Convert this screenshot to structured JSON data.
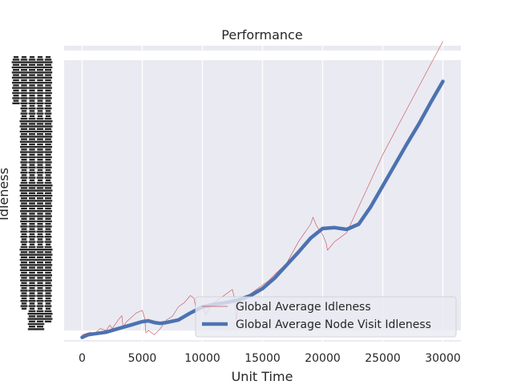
{
  "chart_data": {
    "type": "line",
    "title": "Performance",
    "xlabel": "Unit Time",
    "ylabel": "Idleness",
    "xlim": [
      -1500,
      31500
    ],
    "ylim": [
      -5,
      335
    ],
    "x_ticks": [
      0,
      5000,
      10000,
      15000,
      20000,
      25000,
      30000
    ],
    "x_tick_labels": [
      "0",
      "5000",
      "10000",
      "15000",
      "20000",
      "25000",
      "30000"
    ],
    "grid": true,
    "legend_position": "lower-right",
    "colors": {
      "background": "#eaeaf2",
      "grid": "#ffffff",
      "series_red": "#c44e52",
      "series_blue": "#4c72b0"
    },
    "series": [
      {
        "name": "Global Average Idleness",
        "color": "#c44e52",
        "linewidth": 0.6,
        "x": [
          0,
          700,
          1000,
          1500,
          2000,
          2300,
          2500,
          3000,
          3300,
          3400,
          3700,
          4500,
          5000,
          5200,
          5300,
          5500,
          6000,
          6500,
          7000,
          7500,
          8000,
          8500,
          9000,
          9300,
          9500,
          10000,
          10300,
          10500,
          11000,
          12000,
          12500,
          12700,
          12800,
          13000,
          14000,
          15000,
          15500,
          16000,
          17000,
          18000,
          19000,
          19200,
          19500,
          20000,
          20300,
          20400,
          21000,
          22000,
          23000,
          25000,
          27500,
          30000
        ],
        "y": [
          3,
          6,
          4,
          10,
          8,
          14,
          10,
          20,
          25,
          12,
          18,
          28,
          31,
          22,
          5,
          8,
          3,
          10,
          20,
          24,
          35,
          40,
          48,
          45,
          30,
          35,
          26,
          32,
          40,
          50,
          55,
          42,
          20,
          35,
          50,
          60,
          65,
          72,
          85,
          110,
          130,
          138,
          128,
          118,
          108,
          100,
          110,
          120,
          150,
          210,
          275,
          340
        ]
      },
      {
        "name": "Global Average Node Visit Idleness",
        "color": "#4c72b0",
        "linewidth": 4.5,
        "x": [
          0,
          500,
          1000,
          2000,
          3000,
          4000,
          5000,
          5500,
          6000,
          6500,
          7000,
          8000,
          9000,
          10000,
          11000,
          12000,
          13000,
          14000,
          15000,
          16000,
          17000,
          18000,
          19000,
          20000,
          21000,
          22000,
          23000,
          24000,
          25000,
          26000,
          27000,
          28000,
          29000,
          30000
        ],
        "y": [
          0,
          3,
          4,
          6,
          10,
          14,
          18,
          19,
          17,
          16,
          17,
          20,
          28,
          35,
          38,
          40,
          43,
          48,
          56,
          68,
          83,
          98,
          114,
          125,
          126,
          124,
          130,
          150,
          174,
          198,
          222,
          245,
          270,
          294
        ]
      }
    ]
  }
}
